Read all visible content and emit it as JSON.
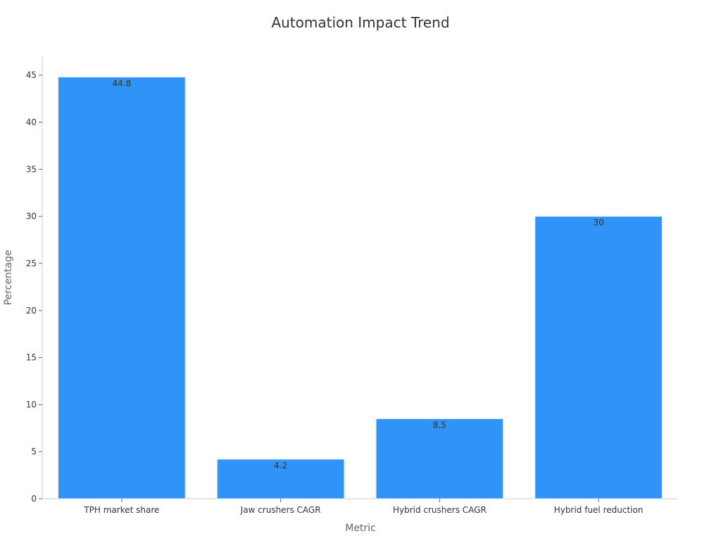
{
  "chart_data": {
    "type": "bar",
    "title": "Automation Impact Trend",
    "xlabel": "Metric",
    "ylabel": "Percentage",
    "categories": [
      "TPH market share",
      "Jaw crushers CAGR",
      "Hybrid crushers CAGR",
      "Hybrid fuel reduction"
    ],
    "values": [
      44.8,
      4.2,
      8.5,
      30
    ],
    "data_labels": [
      "44.8",
      "4.2",
      "8.5",
      "30"
    ],
    "ylim": [
      0,
      47
    ],
    "yticks": [
      0,
      5,
      10,
      15,
      20,
      25,
      30,
      35,
      40,
      45
    ],
    "grid": false,
    "legend": "none",
    "colors": {
      "bar": "#2f93f7",
      "bar_edge": "#dcecfb",
      "axis": "#cccccc",
      "tick_text": "#333333",
      "label_text": "#666666"
    }
  }
}
